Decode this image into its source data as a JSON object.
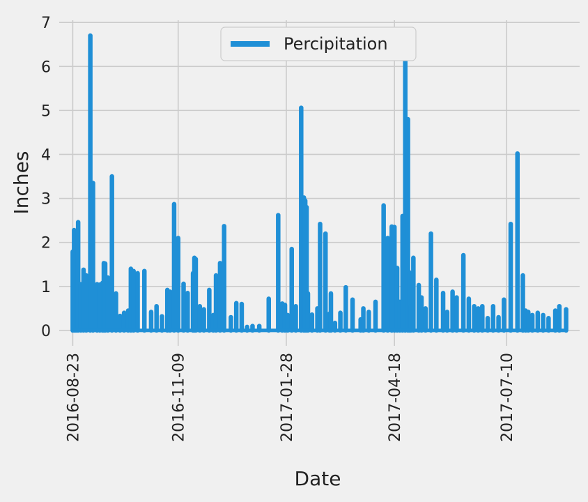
{
  "chart_data": {
    "type": "bar",
    "title": "",
    "xlabel": "Date",
    "ylabel": "Inches",
    "x_ticks": [
      "2016-08-23",
      "2016-11-09",
      "2017-01-28",
      "2017-04-18",
      "2017-07-10"
    ],
    "y_ticks": [
      0,
      1,
      2,
      3,
      4,
      5,
      6,
      7
    ],
    "xlim": [
      "2016-08-13",
      "2017-09-02"
    ],
    "ylim": [
      -0.35,
      7.05
    ],
    "grid": true,
    "legend": {
      "position": "top-center",
      "entries": [
        "Percipitation"
      ]
    },
    "series": [
      {
        "name": "Percipitation",
        "color": "#1f8fd6",
        "x": [
          "2016-08-23",
          "2016-08-24",
          "2016-08-25",
          "2016-08-26",
          "2016-08-27",
          "2016-08-29",
          "2016-08-31",
          "2016-09-02",
          "2016-09-05",
          "2016-09-07",
          "2016-09-10",
          "2016-09-12",
          "2016-09-14",
          "2016-09-15",
          "2016-09-16",
          "2016-09-18",
          "2016-09-21",
          "2016-09-24",
          "2016-09-27",
          "2016-09-30",
          "2016-10-03",
          "2016-10-05",
          "2016-10-07",
          "2016-10-10",
          "2016-10-15",
          "2016-10-20",
          "2016-10-24",
          "2016-10-28",
          "2016-11-01",
          "2016-11-03",
          "2016-11-06",
          "2016-11-09",
          "2016-11-13",
          "2016-11-16",
          "2016-11-20",
          "2016-11-21",
          "2016-11-22",
          "2016-11-25",
          "2016-11-28",
          "2016-12-02",
          "2016-12-05",
          "2016-12-07",
          "2016-12-10",
          "2016-12-13",
          "2016-12-18",
          "2016-12-22",
          "2016-12-26",
          "2016-12-30",
          "2017-01-03",
          "2017-01-08",
          "2017-01-15",
          "2017-01-22",
          "2017-01-25",
          "2017-01-27",
          "2017-01-29",
          "2017-02-01",
          "2017-02-04",
          "2017-02-08",
          "2017-02-10",
          "2017-02-11",
          "2017-02-12",
          "2017-02-13",
          "2017-02-16",
          "2017-02-20",
          "2017-02-22",
          "2017-02-26",
          "2017-03-01",
          "2017-03-02",
          "2017-03-05",
          "2017-03-09",
          "2017-03-13",
          "2017-03-18",
          "2017-03-24",
          "2017-03-26",
          "2017-03-30",
          "2017-04-04",
          "2017-04-10",
          "2017-04-13",
          "2017-04-16",
          "2017-04-18",
          "2017-04-20",
          "2017-04-22",
          "2017-04-24",
          "2017-04-26",
          "2017-04-28",
          "2017-04-29",
          "2017-04-30",
          "2017-05-02",
          "2017-05-06",
          "2017-05-08",
          "2017-05-11",
          "2017-05-15",
          "2017-05-19",
          "2017-05-24",
          "2017-05-27",
          "2017-05-31",
          "2017-06-03",
          "2017-06-08",
          "2017-06-12",
          "2017-06-16",
          "2017-06-19",
          "2017-06-22",
          "2017-06-26",
          "2017-06-30",
          "2017-07-04",
          "2017-07-08",
          "2017-07-13",
          "2017-07-18",
          "2017-07-22",
          "2017-07-24",
          "2017-07-26",
          "2017-07-29",
          "2017-08-02",
          "2017-08-06",
          "2017-08-10",
          "2017-08-15",
          "2017-08-18",
          "2017-08-23"
        ],
        "values": [
          1.79,
          2.28,
          2.15,
          1.22,
          2.46,
          1.05,
          1.38,
          1.25,
          6.7,
          3.35,
          1.05,
          1.04,
          1.08,
          1.53,
          1.52,
          1.2,
          3.5,
          0.84,
          0.33,
          0.4,
          0.45,
          1.4,
          1.35,
          1.3,
          1.35,
          0.42,
          0.55,
          0.32,
          0.92,
          0.88,
          2.87,
          2.1,
          1.06,
          0.85,
          1.3,
          1.65,
          1.62,
          0.55,
          0.48,
          0.92,
          0.35,
          1.25,
          1.53,
          2.37,
          0.3,
          0.62,
          0.6,
          0.08,
          0.1,
          0.1,
          0.72,
          2.62,
          0.61,
          0.58,
          0.35,
          1.85,
          0.55,
          5.06,
          3.02,
          2.95,
          2.8,
          0.84,
          0.36,
          0.5,
          2.42,
          2.2,
          0.38,
          0.84,
          0.17,
          0.4,
          0.98,
          0.7,
          0.25,
          0.5,
          0.42,
          0.65,
          2.84,
          2.1,
          2.36,
          2.35,
          1.42,
          0.65,
          2.6,
          6.25,
          4.8,
          1.32,
          0.55,
          1.65,
          1.03,
          0.75,
          0.5,
          2.2,
          1.15,
          0.85,
          0.42,
          0.88,
          0.75,
          1.71,
          0.72,
          0.55,
          0.5,
          0.55,
          0.28,
          0.55,
          0.3,
          0.7,
          2.42,
          4.02,
          1.25,
          0.45,
          0.42,
          0.35,
          0.4,
          0.35,
          0.28,
          0.45,
          0.55,
          0.48
        ]
      }
    ]
  }
}
